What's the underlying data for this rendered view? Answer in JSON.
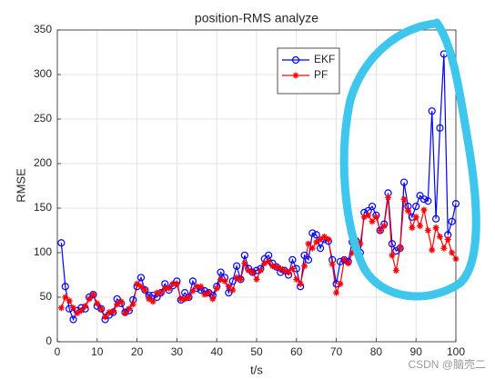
{
  "chart_data": {
    "type": "line",
    "title": "position-RMS analyze",
    "x_label": "t/s",
    "y_label": "RMSE",
    "x": [
      1,
      2,
      3,
      4,
      5,
      6,
      7,
      8,
      9,
      10,
      11,
      12,
      13,
      14,
      15,
      16,
      17,
      18,
      19,
      20,
      21,
      22,
      23,
      24,
      25,
      26,
      27,
      28,
      29,
      30,
      31,
      32,
      33,
      34,
      35,
      36,
      37,
      38,
      39,
      40,
      41,
      42,
      43,
      44,
      45,
      46,
      47,
      48,
      49,
      50,
      51,
      52,
      53,
      54,
      55,
      56,
      57,
      58,
      59,
      60,
      61,
      62,
      63,
      64,
      65,
      66,
      67,
      68,
      69,
      70,
      71,
      72,
      73,
      74,
      75,
      76,
      77,
      78,
      79,
      80,
      81,
      82,
      83,
      84,
      85,
      86,
      87,
      88,
      89,
      90,
      91,
      92,
      93,
      94,
      95,
      96,
      97,
      98,
      99,
      100
    ],
    "series": [
      {
        "name": "EKF",
        "color": "#0000ff",
        "marker": "circle",
        "values": [
          111,
          62,
          37,
          25,
          35,
          38,
          37,
          50,
          53,
          40,
          37,
          25,
          30,
          33,
          48,
          43,
          33,
          35,
          47,
          62,
          72,
          58,
          52,
          52,
          50,
          55,
          65,
          58,
          63,
          68,
          47,
          55,
          50,
          68,
          60,
          58,
          57,
          55,
          52,
          62,
          78,
          72,
          55,
          68,
          85,
          70,
          97,
          82,
          78,
          80,
          82,
          93,
          97,
          88,
          84,
          78,
          80,
          75,
          92,
          82,
          62,
          97,
          92,
          122,
          120,
          105,
          115,
          113,
          92,
          65,
          90,
          92,
          90,
          112,
          113,
          100,
          145,
          147,
          152,
          142,
          125,
          132,
          167,
          110,
          102,
          105,
          179,
          152,
          140,
          152,
          164,
          160,
          158,
          259,
          138,
          240,
          323,
          120,
          135,
          155
        ]
      },
      {
        "name": "PF",
        "color": "#ff0000",
        "marker": "star",
        "values": [
          38,
          50,
          46,
          38,
          32,
          35,
          40,
          48,
          53,
          43,
          37,
          28,
          33,
          34,
          42,
          45,
          32,
          37,
          42,
          65,
          62,
          58,
          48,
          45,
          55,
          55,
          60,
          60,
          65,
          65,
          48,
          48,
          50,
          57,
          62,
          62,
          53,
          55,
          48,
          60,
          70,
          68,
          62,
          58,
          72,
          70,
          88,
          80,
          78,
          70,
          80,
          88,
          90,
          85,
          84,
          82,
          80,
          78,
          82,
          70,
          65,
          85,
          110,
          105,
          112,
          115,
          118,
          115,
          87,
          55,
          65,
          92,
          88,
          100,
          113,
          110,
          140,
          142,
          135,
          140,
          125,
          130,
          162,
          97,
          80,
          105,
          160,
          147,
          128,
          140,
          130,
          148,
          125,
          103,
          128,
          118,
          105,
          115,
          100,
          93
        ]
      }
    ],
    "xlim": [
      0,
      100
    ],
    "xticks": [
      0,
      10,
      20,
      30,
      40,
      50,
      60,
      70,
      80,
      90,
      100
    ],
    "ylim": [
      0,
      350
    ],
    "yticks": [
      0,
      50,
      100,
      150,
      200,
      250,
      300,
      350
    ],
    "grid": true,
    "legend": "north-east"
  },
  "watermark": "CSDN @脑壳二"
}
